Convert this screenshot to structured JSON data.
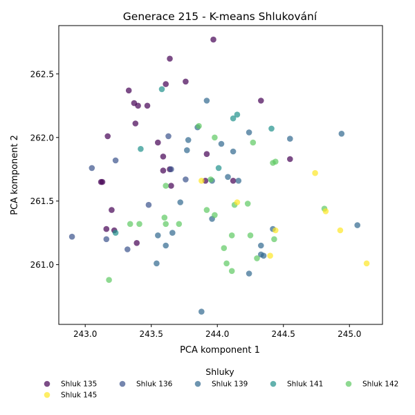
{
  "chart_data": {
    "type": "scatter",
    "title": "Generace 215 - K-means Shlukování",
    "xlabel": "PCA komponent 1",
    "ylabel": "PCA komponent 2",
    "xlim": [
      242.8,
      245.25
    ],
    "ylim": [
      260.53,
      262.88
    ],
    "xticks": [
      "243.0",
      "243.5",
      "244.0",
      "244.5",
      "245.0"
    ],
    "yticks": [
      "261.0",
      "261.5",
      "262.0",
      "262.5"
    ],
    "grid": false,
    "legend_title": "Shluky",
    "legend_position": "bottom",
    "series": [
      {
        "name": "Shluk 135",
        "color": "#440154",
        "points": [
          [
            243.97,
            262.77
          ],
          [
            243.64,
            262.62
          ],
          [
            243.61,
            262.42
          ],
          [
            243.76,
            262.44
          ],
          [
            243.33,
            262.37
          ],
          [
            243.37,
            262.27
          ],
          [
            243.4,
            262.25
          ],
          [
            243.47,
            262.25
          ],
          [
            244.33,
            262.29
          ],
          [
            243.38,
            262.11
          ],
          [
            243.17,
            262.01
          ],
          [
            243.55,
            261.96
          ],
          [
            243.92,
            261.87
          ],
          [
            243.59,
            261.85
          ],
          [
            244.55,
            261.83
          ],
          [
            243.59,
            261.74
          ],
          [
            243.64,
            261.75
          ],
          [
            243.12,
            261.65
          ],
          [
            243.13,
            261.65
          ],
          [
            244.12,
            261.66
          ],
          [
            243.91,
            261.66
          ],
          [
            243.65,
            261.62
          ],
          [
            243.2,
            261.43
          ],
          [
            243.16,
            261.28
          ],
          [
            243.22,
            261.27
          ],
          [
            243.39,
            261.17
          ]
        ]
      },
      {
        "name": "Shluk 136",
        "color": "#3b528b",
        "points": [
          [
            243.63,
            262.01
          ],
          [
            243.05,
            261.76
          ],
          [
            243.23,
            261.82
          ],
          [
            243.65,
            261.75
          ],
          [
            243.76,
            261.67
          ],
          [
            243.48,
            261.47
          ],
          [
            242.9,
            261.22
          ],
          [
            243.16,
            261.2
          ],
          [
            243.32,
            261.12
          ]
        ]
      },
      {
        "name": "Shluk 139",
        "color": "#31688e",
        "points": [
          [
            243.92,
            262.29
          ],
          [
            244.24,
            262.04
          ],
          [
            243.85,
            262.08
          ],
          [
            244.94,
            262.03
          ],
          [
            243.78,
            261.98
          ],
          [
            244.55,
            261.99
          ],
          [
            244.03,
            261.95
          ],
          [
            243.77,
            261.9
          ],
          [
            244.12,
            261.89
          ],
          [
            244.08,
            261.69
          ],
          [
            243.96,
            261.66
          ],
          [
            244.16,
            261.66
          ],
          [
            243.72,
            261.49
          ],
          [
            243.96,
            261.36
          ],
          [
            245.06,
            261.31
          ],
          [
            244.42,
            261.28
          ],
          [
            243.66,
            261.25
          ],
          [
            243.55,
            261.23
          ],
          [
            243.61,
            261.15
          ],
          [
            244.33,
            261.15
          ],
          [
            244.33,
            261.08
          ],
          [
            244.35,
            261.07
          ],
          [
            243.54,
            261.01
          ],
          [
            244.24,
            260.93
          ],
          [
            243.88,
            260.63
          ]
        ]
      },
      {
        "name": "Shluk 141",
        "color": "#21918c",
        "points": [
          [
            243.58,
            262.38
          ],
          [
            244.15,
            262.18
          ],
          [
            244.12,
            262.15
          ],
          [
            244.41,
            262.07
          ],
          [
            243.42,
            261.91
          ],
          [
            244.01,
            261.76
          ],
          [
            243.23,
            261.25
          ]
        ]
      },
      {
        "name": "Shluk 142",
        "color": "#5ec962",
        "points": [
          [
            243.86,
            262.09
          ],
          [
            243.98,
            262.0
          ],
          [
            244.27,
            261.96
          ],
          [
            244.44,
            261.81
          ],
          [
            244.42,
            261.8
          ],
          [
            243.95,
            261.67
          ],
          [
            243.61,
            261.62
          ],
          [
            244.23,
            261.48
          ],
          [
            244.13,
            261.47
          ],
          [
            244.81,
            261.44
          ],
          [
            243.92,
            261.43
          ],
          [
            243.98,
            261.39
          ],
          [
            243.6,
            261.37
          ],
          [
            243.34,
            261.32
          ],
          [
            243.41,
            261.32
          ],
          [
            243.61,
            261.32
          ],
          [
            243.71,
            261.32
          ],
          [
            244.11,
            261.23
          ],
          [
            244.25,
            261.23
          ],
          [
            244.43,
            261.2
          ],
          [
            244.05,
            261.13
          ],
          [
            244.3,
            261.05
          ],
          [
            244.07,
            261.01
          ],
          [
            244.11,
            260.95
          ],
          [
            243.18,
            260.88
          ]
        ]
      },
      {
        "name": "Shluk 145",
        "color": "#fde725",
        "points": [
          [
            244.74,
            261.72
          ],
          [
            243.88,
            261.66
          ],
          [
            244.15,
            261.49
          ],
          [
            244.82,
            261.42
          ],
          [
            244.44,
            261.27
          ],
          [
            244.93,
            261.27
          ],
          [
            244.4,
            261.07
          ],
          [
            245.13,
            261.01
          ]
        ]
      }
    ]
  }
}
